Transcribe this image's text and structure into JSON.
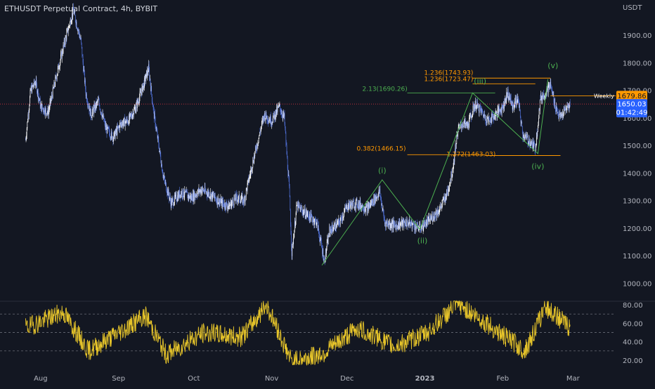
{
  "header": {
    "title": "ETHUSDT Perpetual Contract, 4h, BYBIT"
  },
  "colors": {
    "background": "#131722",
    "candle": "#ffffff",
    "candle_alt": "#4f6fd6",
    "wave_line": "#4caf50",
    "fib_orange": "#ff9800",
    "rsi": "#e6c42a",
    "axis_text": "#b2b5be",
    "last_price_label": "#2962ff",
    "weekly_label": "#ff9800",
    "price_line": "#f23645"
  },
  "chart_data": [
    {
      "type": "candlestick",
      "title": "ETHUSDT Perpetual Contract, 4h, BYBIT",
      "price_scale_unit": "USDT",
      "ylim": [
        950,
        2020
      ],
      "y_ticks": [
        "1900.00",
        "1800.00",
        "1700.00",
        "1600.00",
        "1500.00",
        "1400.00",
        "1300.00",
        "1200.00",
        "1100.00",
        "1000.00"
      ],
      "x_ticks": [
        "Aug",
        "Sep",
        "Oct",
        "Nov",
        "Dec",
        "2023",
        "Feb",
        "Mar"
      ],
      "approx_close_path": [
        {
          "date": "2022-07-26",
          "price": 1520
        },
        {
          "date": "2022-07-28",
          "price": 1700
        },
        {
          "date": "2022-07-30",
          "price": 1730
        },
        {
          "date": "2022-08-01",
          "price": 1640
        },
        {
          "date": "2022-08-04",
          "price": 1620
        },
        {
          "date": "2022-08-08",
          "price": 1780
        },
        {
          "date": "2022-08-11",
          "price": 1890
        },
        {
          "date": "2022-08-14",
          "price": 1990
        },
        {
          "date": "2022-08-17",
          "price": 1880
        },
        {
          "date": "2022-08-19",
          "price": 1690
        },
        {
          "date": "2022-08-21",
          "price": 1610
        },
        {
          "date": "2022-08-24",
          "price": 1660
        },
        {
          "date": "2022-08-27",
          "price": 1560
        },
        {
          "date": "2022-08-30",
          "price": 1530
        },
        {
          "date": "2022-09-02",
          "price": 1580
        },
        {
          "date": "2022-09-05",
          "price": 1590
        },
        {
          "date": "2022-09-08",
          "price": 1640
        },
        {
          "date": "2022-09-11",
          "price": 1720
        },
        {
          "date": "2022-09-13",
          "price": 1780
        },
        {
          "date": "2022-09-15",
          "price": 1620
        },
        {
          "date": "2022-09-19",
          "price": 1380
        },
        {
          "date": "2022-09-22",
          "price": 1290
        },
        {
          "date": "2022-09-26",
          "price": 1330
        },
        {
          "date": "2022-09-30",
          "price": 1310
        },
        {
          "date": "2022-10-04",
          "price": 1340
        },
        {
          "date": "2022-10-08",
          "price": 1320
        },
        {
          "date": "2022-10-12",
          "price": 1290
        },
        {
          "date": "2022-10-15",
          "price": 1280
        },
        {
          "date": "2022-10-18",
          "price": 1310
        },
        {
          "date": "2022-10-21",
          "price": 1300
        },
        {
          "date": "2022-10-25",
          "price": 1460
        },
        {
          "date": "2022-10-29",
          "price": 1610
        },
        {
          "date": "2022-11-01",
          "price": 1590
        },
        {
          "date": "2022-11-04",
          "price": 1640
        },
        {
          "date": "2022-11-06",
          "price": 1600
        },
        {
          "date": "2022-11-08",
          "price": 1340
        },
        {
          "date": "2022-11-09",
          "price": 1110
        },
        {
          "date": "2022-11-11",
          "price": 1280
        },
        {
          "date": "2022-11-15",
          "price": 1250
        },
        {
          "date": "2022-11-19",
          "price": 1220
        },
        {
          "date": "2022-11-22",
          "price": 1080
        },
        {
          "date": "2022-11-24",
          "price": 1190
        },
        {
          "date": "2022-11-28",
          "price": 1220
        },
        {
          "date": "2022-12-01",
          "price": 1280
        },
        {
          "date": "2022-12-05",
          "price": 1290
        },
        {
          "date": "2022-12-09",
          "price": 1270
        },
        {
          "date": "2022-12-14",
          "price": 1330
        },
        {
          "date": "2022-12-16",
          "price": 1220
        },
        {
          "date": "2022-12-20",
          "price": 1210
        },
        {
          "date": "2022-12-25",
          "price": 1220
        },
        {
          "date": "2022-12-30",
          "price": 1200
        },
        {
          "date": "2023-01-03",
          "price": 1230
        },
        {
          "date": "2023-01-07",
          "price": 1270
        },
        {
          "date": "2023-01-10",
          "price": 1330
        },
        {
          "date": "2023-01-12",
          "price": 1410
        },
        {
          "date": "2023-01-14",
          "price": 1550
        },
        {
          "date": "2023-01-16",
          "price": 1580
        },
        {
          "date": "2023-01-18",
          "price": 1570
        },
        {
          "date": "2023-01-21",
          "price": 1650
        },
        {
          "date": "2023-01-23",
          "price": 1630
        },
        {
          "date": "2023-01-26",
          "price": 1590
        },
        {
          "date": "2023-01-29",
          "price": 1610
        },
        {
          "date": "2023-02-01",
          "price": 1640
        },
        {
          "date": "2023-02-03",
          "price": 1690
        },
        {
          "date": "2023-02-05",
          "price": 1640
        },
        {
          "date": "2023-02-07",
          "price": 1670
        },
        {
          "date": "2023-02-09",
          "price": 1540
        },
        {
          "date": "2023-02-12",
          "price": 1510
        },
        {
          "date": "2023-02-14",
          "price": 1490
        },
        {
          "date": "2023-02-16",
          "price": 1670
        },
        {
          "date": "2023-02-18",
          "price": 1690
        },
        {
          "date": "2023-02-20",
          "price": 1720
        },
        {
          "date": "2023-02-22",
          "price": 1640
        },
        {
          "date": "2023-02-24",
          "price": 1600
        },
        {
          "date": "2023-02-26",
          "price": 1630
        },
        {
          "date": "2023-02-28",
          "price": 1650
        }
      ],
      "elliott_wave_path": [
        {
          "date": "2022-11-21",
          "price": 1065
        },
        {
          "date": "2022-12-15",
          "price": 1375
        },
        {
          "date": "2022-12-30",
          "price": 1195
        },
        {
          "date": "2023-01-20",
          "price": 1690
        },
        {
          "date": "2023-02-15",
          "price": 1470
        },
        {
          "date": "2023-02-19",
          "price": 1740
        }
      ],
      "wave_labels": [
        {
          "text": "(i)",
          "date": "2022-12-15",
          "price": 1400
        },
        {
          "text": "(ii)",
          "date": "2022-12-31",
          "price": 1145
        },
        {
          "text": "(iii)",
          "date": "2023-01-23",
          "price": 1724
        },
        {
          "text": "(iv)",
          "date": "2023-02-15",
          "price": 1415
        },
        {
          "text": "(v)",
          "date": "2023-02-21",
          "price": 1780
        }
      ],
      "fib_levels": [
        {
          "label": "2.13(1690.26)",
          "price": 1690.26,
          "color": "green",
          "date_from": "2022-12-25",
          "date_to": "2023-01-29"
        },
        {
          "label": "1.236(1743.93)",
          "price": 1743.93,
          "color": "orange",
          "date_from": "2023-01-20",
          "date_to": "2023-02-20"
        },
        {
          "label": "1.236(1723.47)",
          "price": 1723.47,
          "color": "orange",
          "date_from": "2023-01-20",
          "date_to": "2023-02-14"
        },
        {
          "label": "0.382(1466.15)",
          "price": 1466.15,
          "color": "orange",
          "date_from": "2022-12-25",
          "date_to": "2023-01-25"
        },
        {
          "label": "1.272(1463.03)",
          "price": 1463.03,
          "color": "orange",
          "date_from": "2023-01-25",
          "date_to": "2023-02-24"
        }
      ],
      "weekly_level": {
        "label": "Weekly",
        "price": 1679.86,
        "date_from": "2023-02-20"
      },
      "last_price": {
        "price": "1650.03",
        "countdown": "01:42:49",
        "value": 1650.03
      },
      "weekly_price_label": "1679.86"
    },
    {
      "type": "line",
      "indicator": "RSI",
      "ylim": [
        12,
        86
      ],
      "y_ticks": [
        "80.00",
        "60.00",
        "40.00",
        "20.00"
      ],
      "levels": [
        70,
        50,
        30
      ],
      "approx_path": [
        {
          "date": "2022-07-26",
          "value": 55
        },
        {
          "date": "2022-08-10",
          "value": 72
        },
        {
          "date": "2022-08-20",
          "value": 30
        },
        {
          "date": "2022-09-01",
          "value": 50
        },
        {
          "date": "2022-09-12",
          "value": 68
        },
        {
          "date": "2022-09-20",
          "value": 26
        },
        {
          "date": "2022-10-05",
          "value": 50
        },
        {
          "date": "2022-10-20",
          "value": 45
        },
        {
          "date": "2022-10-30",
          "value": 80
        },
        {
          "date": "2022-11-09",
          "value": 18
        },
        {
          "date": "2022-11-22",
          "value": 28
        },
        {
          "date": "2022-12-05",
          "value": 55
        },
        {
          "date": "2022-12-20",
          "value": 35
        },
        {
          "date": "2023-01-02",
          "value": 50
        },
        {
          "date": "2023-01-14",
          "value": 82
        },
        {
          "date": "2023-01-28",
          "value": 55
        },
        {
          "date": "2023-02-10",
          "value": 30
        },
        {
          "date": "2023-02-18",
          "value": 78
        },
        {
          "date": "2023-02-28",
          "value": 55
        }
      ]
    }
  ]
}
